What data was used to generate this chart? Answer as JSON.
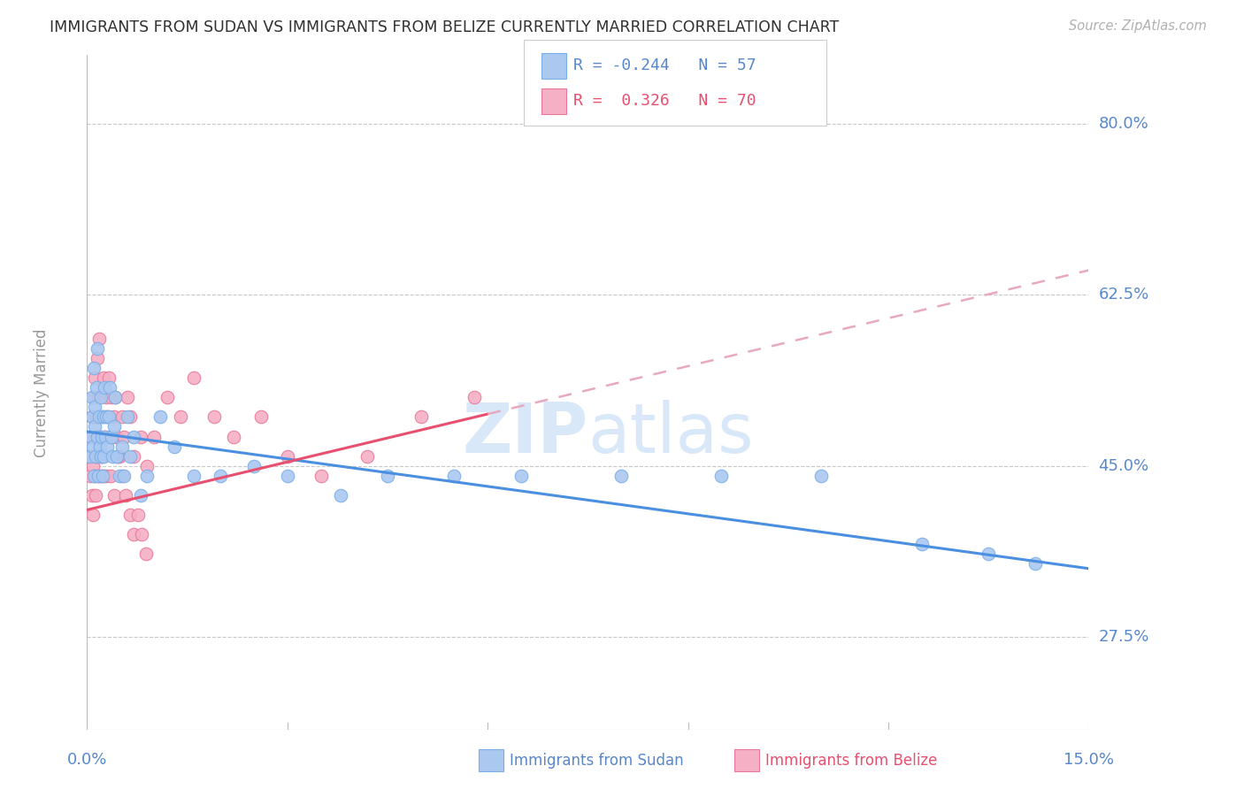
{
  "title": "IMMIGRANTS FROM SUDAN VS IMMIGRANTS FROM BELIZE CURRENTLY MARRIED CORRELATION CHART",
  "source": "Source: ZipAtlas.com",
  "ylabel": "Currently Married",
  "yticks": [
    27.5,
    45.0,
    62.5,
    80.0
  ],
  "ytick_labels": [
    "27.5%",
    "45.0%",
    "62.5%",
    "80.0%"
  ],
  "xmin": 0.0,
  "xmax": 15.0,
  "ymin": 18.0,
  "ymax": 87.0,
  "sudan_color": "#aac8f0",
  "sudan_edge_color": "#7aaee8",
  "belize_color": "#f5b0c5",
  "belize_edge_color": "#e87898",
  "trendline_sudan_color": "#4a8fe0",
  "trendline_belize_solid_color": "#e85070",
  "trendline_belize_dashed_color": "#e8a8be",
  "watermark_color": "#d8e8f8",
  "title_color": "#303030",
  "axis_label_color": "#5888cc",
  "grid_color": "#c8c8c8",
  "background_color": "#ffffff",
  "sudan_R": -0.244,
  "sudan_N": 57,
  "belize_R": 0.326,
  "belize_N": 70,
  "sudan_points_x": [
    0.05,
    0.06,
    0.07,
    0.08,
    0.09,
    0.1,
    0.1,
    0.11,
    0.12,
    0.13,
    0.14,
    0.15,
    0.16,
    0.17,
    0.18,
    0.19,
    0.2,
    0.21,
    0.22,
    0.23,
    0.24,
    0.25,
    0.26,
    0.27,
    0.28,
    0.3,
    0.32,
    0.34,
    0.36,
    0.38,
    0.4,
    0.42,
    0.45,
    0.48,
    0.52,
    0.55,
    0.6,
    0.65,
    0.7,
    0.8,
    0.9,
    1.1,
    1.3,
    1.6,
    2.0,
    2.5,
    3.0,
    3.8,
    4.5,
    5.5,
    6.5,
    8.0,
    9.5,
    11.0,
    12.5,
    13.5,
    14.2
  ],
  "sudan_points_y": [
    46.0,
    48.0,
    50.0,
    52.0,
    47.0,
    55.0,
    44.0,
    51.0,
    49.0,
    46.0,
    53.0,
    57.0,
    48.0,
    44.0,
    50.0,
    47.0,
    52.0,
    46.0,
    48.0,
    44.0,
    50.0,
    46.0,
    53.0,
    48.0,
    50.0,
    47.0,
    50.0,
    53.0,
    48.0,
    46.0,
    49.0,
    52.0,
    46.0,
    44.0,
    47.0,
    44.0,
    50.0,
    46.0,
    48.0,
    42.0,
    44.0,
    50.0,
    47.0,
    44.0,
    44.0,
    45.0,
    44.0,
    42.0,
    44.0,
    44.0,
    44.0,
    44.0,
    44.0,
    44.0,
    37.0,
    36.0,
    35.0
  ],
  "belize_points_x": [
    0.04,
    0.05,
    0.06,
    0.07,
    0.08,
    0.09,
    0.1,
    0.11,
    0.12,
    0.13,
    0.14,
    0.15,
    0.16,
    0.17,
    0.18,
    0.19,
    0.2,
    0.22,
    0.24,
    0.26,
    0.28,
    0.3,
    0.32,
    0.34,
    0.36,
    0.38,
    0.4,
    0.42,
    0.45,
    0.48,
    0.52,
    0.55,
    0.6,
    0.65,
    0.7,
    0.8,
    0.9,
    1.0,
    1.2,
    1.4,
    1.6,
    1.9,
    2.2,
    2.6,
    3.0,
    3.5,
    4.2,
    5.0,
    5.8,
    0.09,
    0.11,
    0.13,
    0.15,
    0.17,
    0.19,
    0.21,
    0.23,
    0.25,
    0.27,
    0.29,
    0.35,
    0.4,
    0.46,
    0.52,
    0.58,
    0.64,
    0.7,
    0.76,
    0.82,
    0.88
  ],
  "belize_points_y": [
    46.0,
    44.0,
    48.0,
    42.0,
    50.0,
    45.0,
    52.0,
    48.0,
    54.0,
    46.0,
    50.0,
    56.0,
    48.0,
    52.0,
    58.0,
    48.0,
    46.0,
    50.0,
    54.0,
    48.0,
    52.0,
    50.0,
    54.0,
    48.0,
    52.0,
    48.0,
    50.0,
    52.0,
    48.0,
    46.0,
    50.0,
    48.0,
    52.0,
    50.0,
    46.0,
    48.0,
    45.0,
    48.0,
    52.0,
    50.0,
    54.0,
    50.0,
    48.0,
    50.0,
    46.0,
    44.0,
    46.0,
    50.0,
    52.0,
    40.0,
    44.0,
    42.0,
    46.0,
    44.0,
    48.0,
    44.0,
    46.0,
    44.0,
    48.0,
    44.0,
    44.0,
    42.0,
    46.0,
    44.0,
    42.0,
    40.0,
    38.0,
    40.0,
    38.0,
    36.0
  ],
  "belize_solid_xmax": 6.0,
  "sudan_trendline_y_at_0": 48.5,
  "sudan_trendline_y_at_15": 34.5,
  "belize_trendline_y_at_0": 40.5,
  "belize_trendline_y_at_15": 65.0
}
